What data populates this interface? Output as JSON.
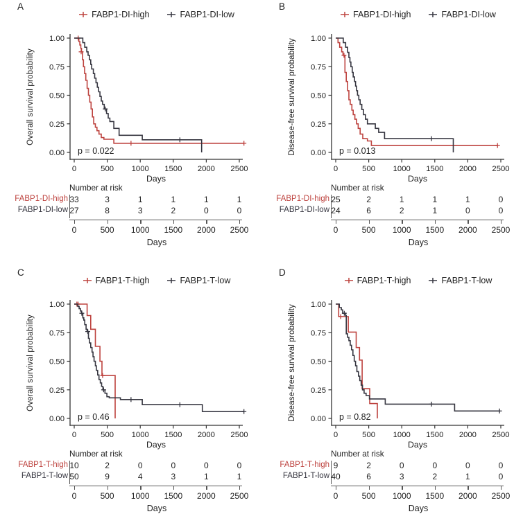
{
  "figure": {
    "background": "#ffffff",
    "text_color": "#1d1d1d",
    "plot_axis_color": "#333333",
    "risk_axis_color": "#555555"
  },
  "palette": {
    "high": "#bd423e",
    "low": "#363640"
  },
  "axes": {
    "xlabel": "Days",
    "x_ticks": [
      0,
      500,
      1000,
      1500,
      2000,
      2500
    ],
    "y_tick_labels": [
      "1.00",
      "0.75",
      "0.50",
      "0.25",
      "0.00"
    ],
    "y_tick_values": [
      1.0,
      0.75,
      0.5,
      0.25,
      0.0
    ],
    "xlim": [
      0,
      2600
    ],
    "ylim": [
      0,
      1
    ],
    "grid": false,
    "legend_position": "top"
  },
  "risk_header": "Number at risk",
  "chart_data": [
    {
      "type": "line",
      "subtype": "kaplan-meier-step",
      "letter": "A",
      "ylabel": "Overall survival probability",
      "xlabel": "Days",
      "pvalue": "p = 0.022",
      "series": [
        {
          "name": "FABP1-DI-high",
          "color_key": "high",
          "points": [
            [
              0,
              1.0
            ],
            [
              70,
              0.97
            ],
            [
              85,
              0.94
            ],
            [
              100,
              0.91
            ],
            [
              110,
              0.88
            ],
            [
              125,
              0.81
            ],
            [
              140,
              0.75
            ],
            [
              158,
              0.69
            ],
            [
              175,
              0.63
            ],
            [
              195,
              0.56
            ],
            [
              215,
              0.5
            ],
            [
              235,
              0.44
            ],
            [
              255,
              0.38
            ],
            [
              275,
              0.31
            ],
            [
              295,
              0.25
            ],
            [
              320,
              0.22
            ],
            [
              345,
              0.19
            ],
            [
              375,
              0.16
            ],
            [
              410,
              0.13
            ],
            [
              450,
              0.115
            ],
            [
              600,
              0.08
            ],
            [
              2570,
              0.08
            ]
          ],
          "censors": [
            [
              60,
              1.0
            ],
            [
              105,
              0.88
            ],
            [
              860,
              0.08
            ],
            [
              2570,
              0.08
            ]
          ]
        },
        {
          "name": "FABP1-DI-low",
          "color_key": "low",
          "points": [
            [
              0,
              1.0
            ],
            [
              130,
              0.96
            ],
            [
              160,
              0.92
            ],
            [
              190,
              0.88
            ],
            [
              210,
              0.85
            ],
            [
              230,
              0.81
            ],
            [
              250,
              0.77
            ],
            [
              265,
              0.73
            ],
            [
              290,
              0.69
            ],
            [
              310,
              0.65
            ],
            [
              330,
              0.61
            ],
            [
              350,
              0.57
            ],
            [
              370,
              0.53
            ],
            [
              390,
              0.49
            ],
            [
              410,
              0.45
            ],
            [
              430,
              0.42
            ],
            [
              455,
              0.38
            ],
            [
              490,
              0.34
            ],
            [
              515,
              0.3
            ],
            [
              540,
              0.27
            ],
            [
              600,
              0.21
            ],
            [
              680,
              0.15
            ],
            [
              1030,
              0.11
            ],
            [
              1930,
              0.11
            ],
            [
              1930,
              0.0
            ]
          ],
          "censors": [
            [
              470,
              0.38
            ],
            [
              1600,
              0.11
            ]
          ]
        }
      ],
      "risk_rows": [
        {
          "label": "FABP1-DI-high",
          "color_key": "high",
          "values": [
            33,
            3,
            1,
            1,
            1,
            1
          ]
        },
        {
          "label": "FABP1-DI-low",
          "color_key": "low",
          "values": [
            27,
            8,
            3,
            2,
            0,
            0
          ]
        }
      ]
    },
    {
      "type": "line",
      "subtype": "kaplan-meier-step",
      "letter": "B",
      "ylabel": "Disease-free survival probability",
      "xlabel": "Days",
      "pvalue": "p = 0.013",
      "series": [
        {
          "name": "FABP1-DI-high",
          "color_key": "high",
          "points": [
            [
              0,
              1.0
            ],
            [
              35,
              0.96
            ],
            [
              60,
              0.92
            ],
            [
              90,
              0.88
            ],
            [
              110,
              0.85
            ],
            [
              140,
              0.7
            ],
            [
              160,
              0.62
            ],
            [
              180,
              0.54
            ],
            [
              200,
              0.46
            ],
            [
              220,
              0.42
            ],
            [
              245,
              0.37
            ],
            [
              265,
              0.33
            ],
            [
              290,
              0.29
            ],
            [
              315,
              0.25
            ],
            [
              340,
              0.21
            ],
            [
              370,
              0.16
            ],
            [
              410,
              0.12
            ],
            [
              480,
              0.1
            ],
            [
              540,
              0.06
            ],
            [
              2450,
              0.06
            ]
          ],
          "censors": [
            [
              125,
              0.85
            ],
            [
              2450,
              0.06
            ]
          ]
        },
        {
          "name": "FABP1-DI-low",
          "color_key": "low",
          "points": [
            [
              0,
              1.0
            ],
            [
              115,
              0.96
            ],
            [
              150,
              0.92
            ],
            [
              180,
              0.875
            ],
            [
              200,
              0.83
            ],
            [
              215,
              0.79
            ],
            [
              230,
              0.75
            ],
            [
              250,
              0.7
            ],
            [
              265,
              0.66
            ],
            [
              285,
              0.62
            ],
            [
              300,
              0.58
            ],
            [
              315,
              0.54
            ],
            [
              330,
              0.5
            ],
            [
              350,
              0.46
            ],
            [
              370,
              0.42
            ],
            [
              395,
              0.375
            ],
            [
              420,
              0.33
            ],
            [
              450,
              0.29
            ],
            [
              480,
              0.25
            ],
            [
              600,
              0.21
            ],
            [
              650,
              0.175
            ],
            [
              740,
              0.12
            ],
            [
              1780,
              0.12
            ],
            [
              1780,
              0.0
            ]
          ],
          "censors": [
            [
              1450,
              0.12
            ]
          ]
        }
      ],
      "risk_rows": [
        {
          "label": "FABP1-DI-high",
          "color_key": "high",
          "values": [
            25,
            2,
            1,
            1,
            1,
            0
          ]
        },
        {
          "label": "FABP1-DI-low",
          "color_key": "low",
          "values": [
            24,
            6,
            2,
            1,
            0,
            0
          ]
        }
      ]
    },
    {
      "type": "line",
      "subtype": "kaplan-meier-step",
      "letter": "C",
      "ylabel": "Overall survival probability",
      "xlabel": "Days",
      "pvalue": "p = 0.46",
      "series": [
        {
          "name": "FABP1-T-high",
          "color_key": "high",
          "points": [
            [
              0,
              1.0
            ],
            [
              195,
              0.9
            ],
            [
              250,
              0.78
            ],
            [
              320,
              0.63
            ],
            [
              390,
              0.5
            ],
            [
              420,
              0.375
            ],
            [
              620,
              0.375
            ],
            [
              620,
              0.0
            ]
          ],
          "censors": [
            [
              40,
              1.0
            ],
            [
              58,
              1.0
            ],
            [
              430,
              0.375
            ]
          ]
        },
        {
          "name": "FABP1-T-low",
          "color_key": "low",
          "points": [
            [
              0,
              1.0
            ],
            [
              55,
              0.98
            ],
            [
              75,
              0.96
            ],
            [
              95,
              0.94
            ],
            [
              110,
              0.92
            ],
            [
              130,
              0.88
            ],
            [
              145,
              0.86
            ],
            [
              160,
              0.82
            ],
            [
              180,
              0.78
            ],
            [
              195,
              0.76
            ],
            [
              215,
              0.7
            ],
            [
              230,
              0.66
            ],
            [
              250,
              0.62
            ],
            [
              270,
              0.58
            ],
            [
              285,
              0.54
            ],
            [
              300,
              0.5
            ],
            [
              320,
              0.46
            ],
            [
              335,
              0.42
            ],
            [
              355,
              0.38
            ],
            [
              375,
              0.34
            ],
            [
              395,
              0.31
            ],
            [
              415,
              0.28
            ],
            [
              435,
              0.25
            ],
            [
              465,
              0.22
            ],
            [
              495,
              0.19
            ],
            [
              530,
              0.18
            ],
            [
              700,
              0.165
            ],
            [
              1030,
              0.12
            ],
            [
              1900,
              0.12
            ],
            [
              1940,
              0.06
            ],
            [
              2570,
              0.06
            ]
          ],
          "censors": [
            [
              115,
              0.92
            ],
            [
              205,
              0.76
            ],
            [
              445,
              0.25
            ],
            [
              860,
              0.165
            ],
            [
              1600,
              0.12
            ],
            [
              2570,
              0.06
            ]
          ]
        }
      ],
      "risk_rows": [
        {
          "label": "FABP1-T-high",
          "color_key": "high",
          "values": [
            10,
            2,
            0,
            0,
            0,
            0
          ]
        },
        {
          "label": "FABP1-T-low",
          "color_key": "low",
          "values": [
            50,
            9,
            4,
            3,
            1,
            1
          ]
        }
      ]
    },
    {
      "type": "line",
      "subtype": "kaplan-meier-step",
      "letter": "D",
      "ylabel": "Disease-free survival probability",
      "xlabel": "Days",
      "pvalue": "p = 0.82",
      "series": [
        {
          "name": "FABP1-T-high",
          "color_key": "high",
          "points": [
            [
              0,
              1.0
            ],
            [
              45,
              0.89
            ],
            [
              190,
              0.755
            ],
            [
              310,
              0.62
            ],
            [
              360,
              0.51
            ],
            [
              400,
              0.26
            ],
            [
              515,
              0.13
            ],
            [
              630,
              0.13
            ],
            [
              630,
              0.0
            ]
          ],
          "censors": [
            [
              75,
              0.89
            ]
          ]
        },
        {
          "name": "FABP1-T-low",
          "color_key": "low",
          "points": [
            [
              0,
              1.0
            ],
            [
              55,
              0.97
            ],
            [
              85,
              0.95
            ],
            [
              105,
              0.92
            ],
            [
              150,
              0.9
            ],
            [
              160,
              0.74
            ],
            [
              180,
              0.71
            ],
            [
              200,
              0.68
            ],
            [
              220,
              0.64
            ],
            [
              240,
              0.6
            ],
            [
              260,
              0.55
            ],
            [
              280,
              0.5
            ],
            [
              300,
              0.46
            ],
            [
              320,
              0.41
            ],
            [
              345,
              0.37
            ],
            [
              365,
              0.33
            ],
            [
              385,
              0.29
            ],
            [
              405,
              0.25
            ],
            [
              430,
              0.22
            ],
            [
              460,
              0.2
            ],
            [
              510,
              0.17
            ],
            [
              750,
              0.125
            ],
            [
              1800,
              0.125
            ],
            [
              1800,
              0.065
            ],
            [
              2480,
              0.065
            ]
          ],
          "censors": [
            [
              130,
              0.92
            ],
            [
              1450,
              0.125
            ],
            [
              2480,
              0.065
            ]
          ]
        }
      ],
      "risk_rows": [
        {
          "label": "FABP1-T-high",
          "color_key": "high",
          "values": [
            9,
            2,
            0,
            0,
            0,
            0
          ]
        },
        {
          "label": "FABP1-T-low",
          "color_key": "low",
          "values": [
            40,
            6,
            3,
            2,
            1,
            0
          ]
        }
      ]
    }
  ]
}
